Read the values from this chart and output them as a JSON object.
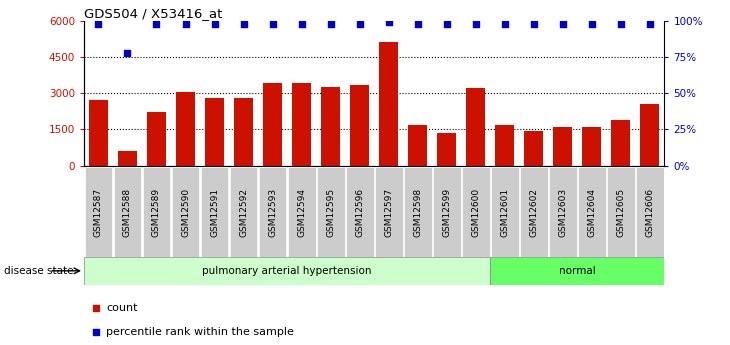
{
  "title": "GDS504 / X53416_at",
  "categories": [
    "GSM12587",
    "GSM12588",
    "GSM12589",
    "GSM12590",
    "GSM12591",
    "GSM12592",
    "GSM12593",
    "GSM12594",
    "GSM12595",
    "GSM12596",
    "GSM12597",
    "GSM12598",
    "GSM12599",
    "GSM12600",
    "GSM12601",
    "GSM12602",
    "GSM12603",
    "GSM12604",
    "GSM12605",
    "GSM12606"
  ],
  "counts": [
    2700,
    600,
    2200,
    3050,
    2800,
    2800,
    3400,
    3400,
    3250,
    3350,
    5100,
    1700,
    1350,
    3200,
    1700,
    1450,
    1600,
    1600,
    1900,
    2550
  ],
  "percentiles": [
    98,
    78,
    98,
    98,
    98,
    98,
    98,
    98,
    98,
    98,
    99,
    98,
    98,
    98,
    98,
    98,
    98,
    98,
    98,
    98
  ],
  "disease_groups": [
    {
      "label": "pulmonary arterial hypertension",
      "start": 0,
      "end": 14,
      "color": "#ccffcc"
    },
    {
      "label": "normal",
      "start": 14,
      "end": 20,
      "color": "#66ff66"
    }
  ],
  "bar_color": "#cc1100",
  "dot_color": "#0000cc",
  "ylim_left": [
    0,
    6000
  ],
  "ylim_right": [
    0,
    100
  ],
  "yticks_left": [
    0,
    1500,
    3000,
    4500,
    6000
  ],
  "ytick_labels_left": [
    "0",
    "1500",
    "3000",
    "4500",
    "6000"
  ],
  "yticks_right": [
    0,
    25,
    50,
    75,
    100
  ],
  "ytick_labels_right": [
    "0%",
    "25%",
    "50%",
    "75%",
    "100%"
  ],
  "grid_color": "#000000",
  "background_color": "#ffffff",
  "plot_bg_color": "#ffffff",
  "tick_bg_color": "#cccccc",
  "disease_state_label": "disease state",
  "legend_count_label": "count",
  "legend_percentile_label": "percentile rank within the sample"
}
